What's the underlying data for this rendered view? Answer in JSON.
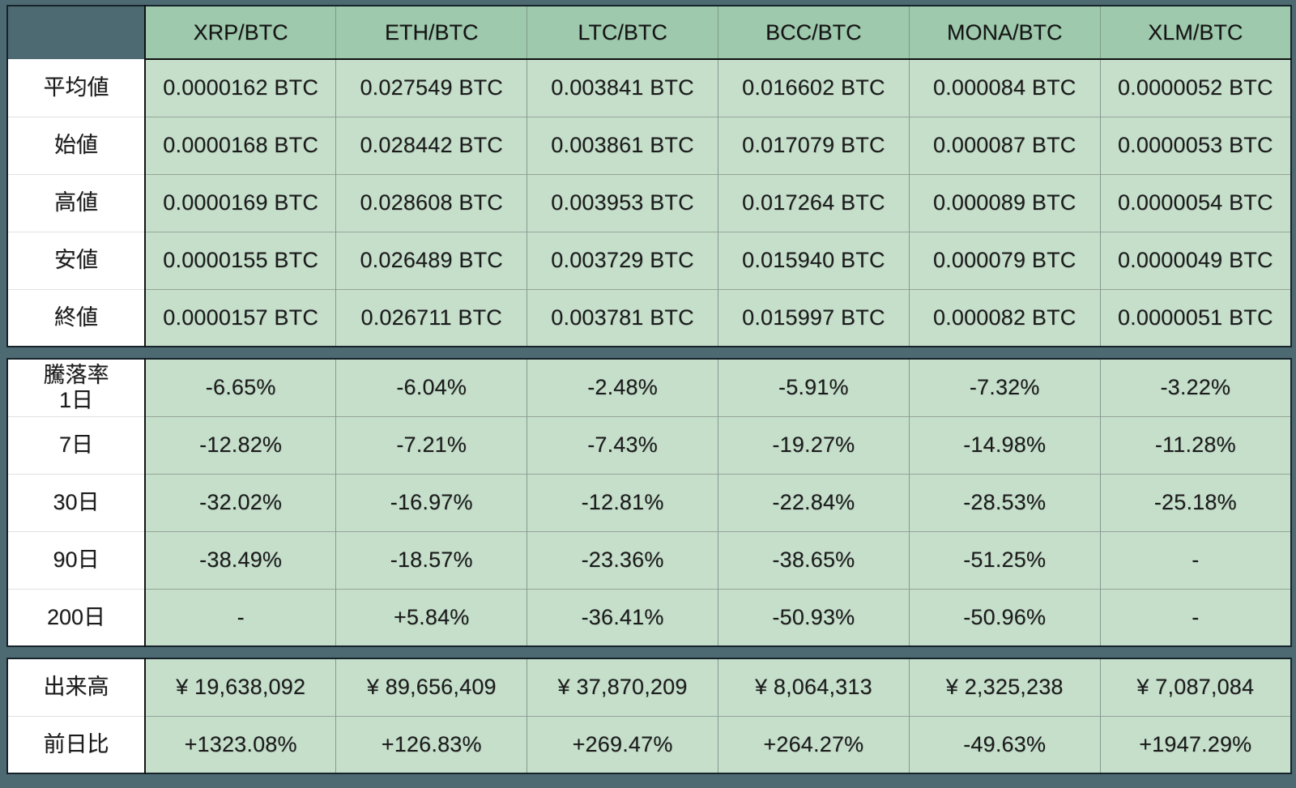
{
  "chart_data": {
    "type": "table",
    "title": "",
    "columns": [
      "XRP/BTC",
      "ETH/BTC",
      "LTC/BTC",
      "BCC/BTC",
      "MONA/BTC",
      "XLM/BTC"
    ],
    "sections": [
      {
        "name": "prices",
        "rows": [
          {
            "label_lines": [
              "平均値"
            ],
            "values": [
              "0.0000162 BTC",
              "0.027549 BTC",
              "0.003841 BTC",
              "0.016602 BTC",
              "0.000084 BTC",
              "0.0000052 BTC"
            ]
          },
          {
            "label_lines": [
              "始値"
            ],
            "values": [
              "0.0000168 BTC",
              "0.028442 BTC",
              "0.003861 BTC",
              "0.017079 BTC",
              "0.000087 BTC",
              "0.0000053 BTC"
            ]
          },
          {
            "label_lines": [
              "高値"
            ],
            "values": [
              "0.0000169 BTC",
              "0.028608 BTC",
              "0.003953 BTC",
              "0.017264 BTC",
              "0.000089 BTC",
              "0.0000054 BTC"
            ]
          },
          {
            "label_lines": [
              "安値"
            ],
            "values": [
              "0.0000155 BTC",
              "0.026489 BTC",
              "0.003729 BTC",
              "0.015940 BTC",
              "0.000079 BTC",
              "0.0000049 BTC"
            ]
          },
          {
            "label_lines": [
              "終値"
            ],
            "values": [
              "0.0000157 BTC",
              "0.026711 BTC",
              "0.003781 BTC",
              "0.015997 BTC",
              "0.000082 BTC",
              "0.0000051 BTC"
            ]
          }
        ]
      },
      {
        "name": "change_rate",
        "rows": [
          {
            "label_lines": [
              "騰落率",
              "1日"
            ],
            "values": [
              "-6.65%",
              "-6.04%",
              "-2.48%",
              "-5.91%",
              "-7.32%",
              "-3.22%"
            ]
          },
          {
            "label_lines": [
              "7日"
            ],
            "values": [
              "-12.82%",
              "-7.21%",
              "-7.43%",
              "-19.27%",
              "-14.98%",
              "-11.28%"
            ]
          },
          {
            "label_lines": [
              "30日"
            ],
            "values": [
              "-32.02%",
              "-16.97%",
              "-12.81%",
              "-22.84%",
              "-28.53%",
              "-25.18%"
            ]
          },
          {
            "label_lines": [
              "90日"
            ],
            "values": [
              "-38.49%",
              "-18.57%",
              "-23.36%",
              "-38.65%",
              "-51.25%",
              "-"
            ]
          },
          {
            "label_lines": [
              "200日"
            ],
            "values": [
              "-",
              "+5.84%",
              "-36.41%",
              "-50.93%",
              "-50.96%",
              "-"
            ]
          }
        ]
      },
      {
        "name": "volume",
        "rows": [
          {
            "label_lines": [
              "出来高"
            ],
            "values": [
              "¥ 19,638,092",
              "¥ 89,656,409",
              "¥ 37,870,209",
              "¥ 8,064,313",
              "¥ 2,325,238",
              "¥ 7,087,084"
            ]
          },
          {
            "label_lines": [
              "前日比"
            ],
            "values": [
              "+1323.08%",
              "+126.83%",
              "+269.47%",
              "+264.27%",
              "-49.63%",
              "+1947.29%"
            ]
          }
        ]
      }
    ]
  },
  "colors": {
    "frame_slate": "#4d6972",
    "header_green": "#9ec9ad",
    "cell_green": "#c5dfcb",
    "label_white": "#ffffff",
    "text_dark": "#1b1b1b"
  }
}
